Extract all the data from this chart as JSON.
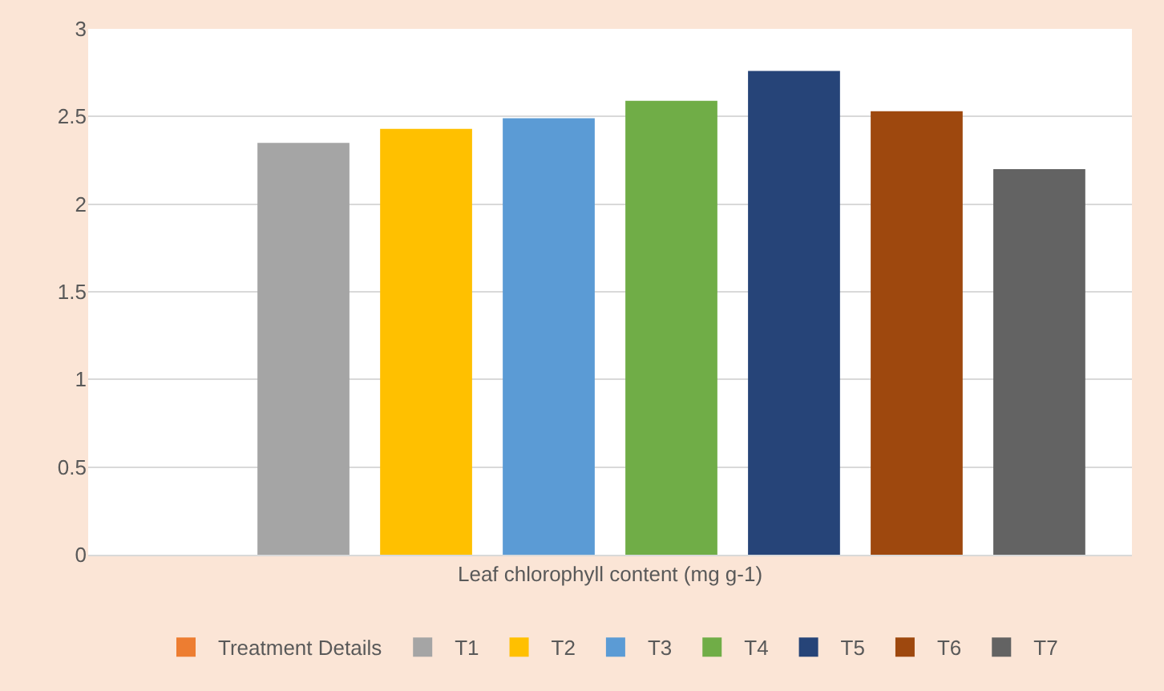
{
  "chart_data": {
    "type": "bar",
    "categories": [
      "Leaf chlorophyll content (mg g-1)"
    ],
    "series": [
      {
        "name": "Treatment Details",
        "color": "#ed7d31",
        "values": [
          null
        ]
      },
      {
        "name": "T1",
        "color": "#a5a5a5",
        "values": [
          2.35
        ]
      },
      {
        "name": "T2",
        "color": "#ffc000",
        "values": [
          2.43
        ]
      },
      {
        "name": "T3",
        "color": "#5b9bd5",
        "values": [
          2.49
        ]
      },
      {
        "name": "T4",
        "color": "#70ad47",
        "values": [
          2.59
        ]
      },
      {
        "name": "T5",
        "color": "#264478",
        "values": [
          2.76
        ]
      },
      {
        "name": "T6",
        "color": "#9e480e",
        "values": [
          2.53
        ]
      },
      {
        "name": "T7",
        "color": "#636363",
        "values": [
          2.2
        ]
      }
    ],
    "ylim": [
      0,
      3
    ],
    "yticks": [
      0,
      0.5,
      1,
      1.5,
      2,
      2.5,
      3
    ],
    "grid": "y",
    "legend": "bottom"
  }
}
